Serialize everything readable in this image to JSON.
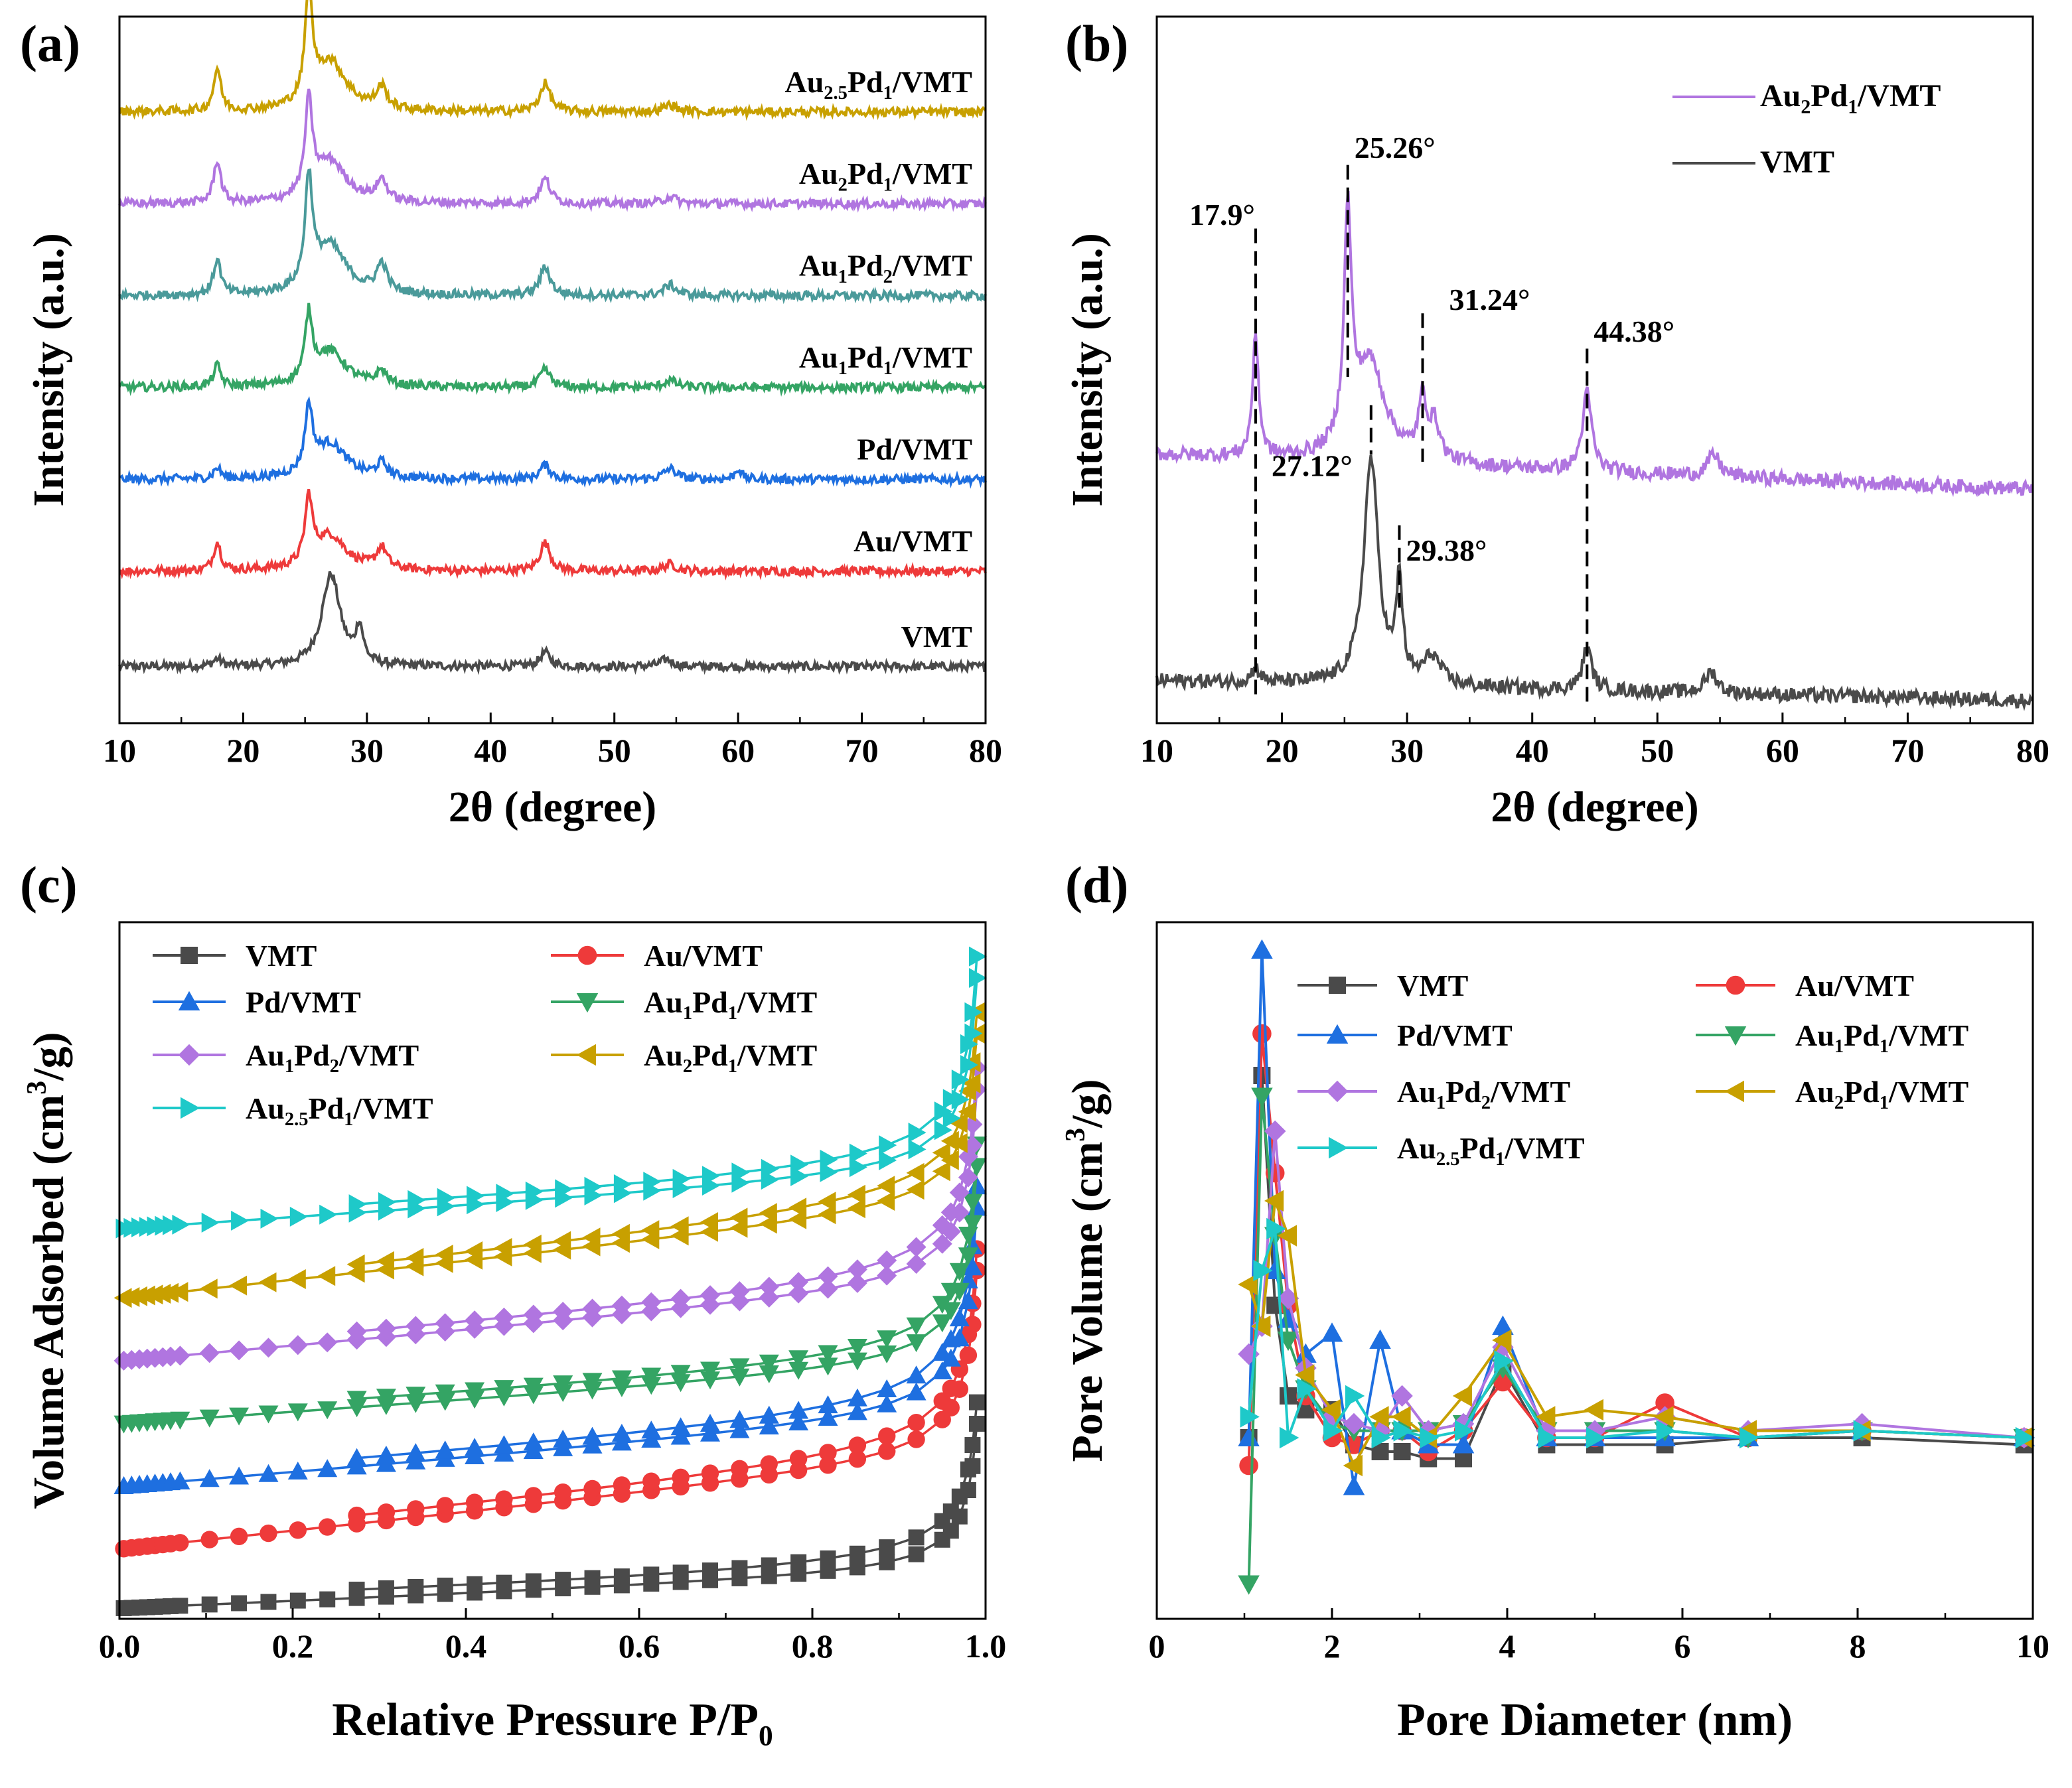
{
  "chart_data": [
    {
      "panel": "(a)",
      "type": "line",
      "xlabel": "2θ (degree)",
      "ylabel": "Intensity (a.u.)",
      "xlim": [
        10,
        80
      ],
      "xticks": [
        "10",
        "20",
        "30",
        "40",
        "50",
        "60",
        "70",
        "80"
      ],
      "series": [
        {
          "name": "VMT",
          "label_main": "VMT",
          "label_sub": "",
          "label_tail": "",
          "color": "#4a4a4a",
          "base": 0.08,
          "peaks": [
            [
              27.1,
              0.13,
              0.9
            ],
            [
              29.4,
              0.05,
              0.35
            ],
            [
              17.9,
              0.01,
              0.4
            ],
            [
              44.4,
              0.02,
              0.5
            ],
            [
              54.2,
              0.01,
              0.6
            ]
          ]
        },
        {
          "name": "Au/VMT",
          "label_main": "Au/VMT",
          "label_sub": "",
          "label_tail": "",
          "color": "#ee3a3a",
          "base": 0.215,
          "peaks": [
            [
              25.3,
              0.09,
              0.35
            ],
            [
              27.0,
              0.05,
              1.6
            ],
            [
              17.9,
              0.04,
              0.35
            ],
            [
              31.2,
              0.03,
              0.5
            ],
            [
              44.4,
              0.04,
              0.5
            ],
            [
              54.5,
              0.01,
              0.6
            ]
          ]
        },
        {
          "name": "Pd/VMT",
          "label_main": "Pd/VMT",
          "label_sub": "",
          "label_tail": "",
          "color": "#1e6fe0",
          "base": 0.345,
          "peaks": [
            [
              25.3,
              0.09,
              0.35
            ],
            [
              27.0,
              0.05,
              1.6
            ],
            [
              17.9,
              0.015,
              0.35
            ],
            [
              31.2,
              0.02,
              0.5
            ],
            [
              44.4,
              0.02,
              0.5
            ],
            [
              54.5,
              0.015,
              0.6
            ],
            [
              60.0,
              0.015,
              0.3
            ]
          ]
        },
        {
          "name": "Au1Pd1/VMT",
          "label_main": "Au",
          "label_sub": "1",
          "label_mid": "Pd",
          "label_sub2": "1",
          "label_tail": "/VMT",
          "color": "#34a464",
          "base": 0.475,
          "peaks": [
            [
              25.3,
              0.09,
              0.35
            ],
            [
              27.0,
              0.05,
              1.6
            ],
            [
              17.9,
              0.03,
              0.35
            ],
            [
              31.2,
              0.02,
              0.5
            ],
            [
              44.4,
              0.025,
              0.5
            ],
            [
              54.5,
              0.01,
              0.6
            ]
          ]
        },
        {
          "name": "Au1Pd2/VMT",
          "label_main": "Au",
          "label_sub": "1",
          "label_mid": "Pd",
          "label_sub2": "2",
          "label_tail": "/VMT",
          "color": "#4a9a9a",
          "base": 0.605,
          "peaks": [
            [
              25.3,
              0.15,
              0.35
            ],
            [
              27.0,
              0.07,
              1.6
            ],
            [
              17.9,
              0.05,
              0.35
            ],
            [
              31.2,
              0.04,
              0.5
            ],
            [
              44.4,
              0.04,
              0.5
            ],
            [
              54.5,
              0.015,
              0.6
            ]
          ]
        },
        {
          "name": "Au2Pd1/VMT",
          "label_main": "Au",
          "label_sub": "2",
          "label_mid": "Pd",
          "label_sub2": "1",
          "label_tail": "/VMT",
          "color": "#b075e0",
          "base": 0.735,
          "peaks": [
            [
              25.3,
              0.13,
              0.35
            ],
            [
              27.0,
              0.06,
              1.6
            ],
            [
              17.9,
              0.06,
              0.35
            ],
            [
              31.2,
              0.03,
              0.5
            ],
            [
              44.4,
              0.035,
              0.5
            ],
            [
              54.5,
              0.01,
              0.6
            ]
          ]
        },
        {
          "name": "Au2.5Pd1/VMT",
          "label_main": "Au",
          "label_sub": "2.5",
          "label_mid": "Pd",
          "label_sub2": "1",
          "label_tail": "/VMT",
          "color": "#c8a000",
          "base": 0.865,
          "peaks": [
            [
              25.3,
              0.15,
              0.35
            ],
            [
              27.0,
              0.07,
              1.6
            ],
            [
              17.9,
              0.06,
              0.35
            ],
            [
              31.2,
              0.03,
              0.5
            ],
            [
              44.4,
              0.04,
              0.5
            ],
            [
              54.5,
              0.01,
              0.6
            ]
          ]
        }
      ]
    },
    {
      "panel": "(b)",
      "type": "line",
      "xlabel": "2θ (degree)",
      "ylabel": "Intensity (a.u.)",
      "xlim": [
        10,
        80
      ],
      "xticks": [
        "10",
        "20",
        "30",
        "40",
        "50",
        "60",
        "70",
        "80"
      ],
      "legend": [
        {
          "main": "Au",
          "sub": "2",
          "mid": "Pd",
          "sub2": "1",
          "tail": "/VMT",
          "color": "#b075e0"
        },
        {
          "main": "VMT",
          "sub": "",
          "mid": "",
          "sub2": "",
          "tail": "",
          "color": "#4a4a4a"
        }
      ],
      "series": [
        {
          "name": "Au2Pd1/VMT",
          "color": "#b075e0",
          "base": 0.38,
          "slope": -0.0007,
          "peaks": [
            [
              25.26,
              0.32,
              0.35
            ],
            [
              27.0,
              0.14,
              1.5
            ],
            [
              17.9,
              0.17,
              0.3
            ],
            [
              31.24,
              0.08,
              0.4
            ],
            [
              32.2,
              0.05,
              0.5
            ],
            [
              44.38,
              0.11,
              0.45
            ],
            [
              54.5,
              0.03,
              0.6
            ]
          ]
        },
        {
          "name": "VMT",
          "color": "#4a4a4a",
          "base": 0.06,
          "slope": -0.0004,
          "peaks": [
            [
              27.12,
              0.32,
              0.7
            ],
            [
              29.38,
              0.14,
              0.3
            ],
            [
              32.0,
              0.04,
              0.8
            ],
            [
              17.9,
              0.02,
              0.4
            ],
            [
              44.38,
              0.06,
              0.45
            ],
            [
              54.3,
              0.03,
              0.6
            ]
          ]
        }
      ],
      "annotations": [
        {
          "text": "17.9°",
          "x": 17.9
        },
        {
          "text": "25.26°",
          "x": 25.26
        },
        {
          "text": "31.24°",
          "x": 31.24
        },
        {
          "text": "44.38°",
          "x": 44.38
        },
        {
          "text": "27.12°",
          "x": 27.12
        },
        {
          "text": "29.38°",
          "x": 29.38
        }
      ]
    },
    {
      "panel": "(c)",
      "type": "line",
      "xlabel_main": "Relative Pressure P/P",
      "xlabel_sub": "0",
      "ylabel_main": "Volume Adsorbed (cm",
      "ylabel_sup": "3",
      "ylabel_tail": "/g)",
      "xlim": [
        0,
        1
      ],
      "xticks": [
        "0.0",
        "0.2",
        "0.4",
        "0.6",
        "0.8",
        "1.0"
      ],
      "series": [
        {
          "name": "VMT",
          "color": "#4a4a4a",
          "marker": "square",
          "start": 0.015,
          "end": 0.28,
          "slope": 0.05
        },
        {
          "name": "Au/VMT",
          "color": "#ee3a3a",
          "marker": "circle",
          "start": 0.1,
          "end": 0.5,
          "slope": 0.1
        },
        {
          "name": "Pd/VMT",
          "color": "#1e6fe0",
          "marker": "triangle-up",
          "start": 0.19,
          "end": 0.59,
          "slope": 0.07
        },
        {
          "name": "Au1Pd1/VMT",
          "color": "#34a464",
          "marker": "triangle-down",
          "start": 0.28,
          "end": 0.65,
          "slope": 0.06
        },
        {
          "name": "Au1Pd2/VMT",
          "color": "#b075e0",
          "marker": "diamond",
          "start": 0.37,
          "end": 0.76,
          "slope": 0.08
        },
        {
          "name": "Au2Pd1/VMT",
          "color": "#c8a000",
          "marker": "triangle-left",
          "start": 0.46,
          "end": 0.84,
          "slope": 0.11
        },
        {
          "name": "Au2.5Pd1/VMT",
          "color": "#1ec9c9",
          "marker": "triangle-right",
          "start": 0.56,
          "end": 0.92,
          "slope": 0.06
        }
      ],
      "legend": [
        {
          "main": "VMT",
          "sub": "",
          "mid": "",
          "sub2": "",
          "tail": ""
        },
        {
          "main": "Au/VMT",
          "sub": "",
          "mid": "",
          "sub2": "",
          "tail": ""
        },
        {
          "main": "Pd/VMT",
          "sub": "",
          "mid": "",
          "sub2": "",
          "tail": ""
        },
        {
          "main": "Au",
          "sub": "1",
          "mid": "Pd",
          "sub2": "1",
          "tail": "/VMT"
        },
        {
          "main": "Au",
          "sub": "1",
          "mid": "Pd",
          "sub2": "2",
          "tail": "/VMT"
        },
        {
          "main": "Au",
          "sub": "2",
          "mid": "Pd",
          "sub2": "1",
          "tail": "/VMT"
        },
        {
          "main": "Au",
          "sub": "2.5",
          "mid": "Pd",
          "sub2": "1",
          "tail": "/VMT"
        }
      ]
    },
    {
      "panel": "(d)",
      "type": "line",
      "xlabel": "Pore Diameter (nm)",
      "ylabel_main": "Pore Volume (cm",
      "ylabel_sup": "3",
      "ylabel_tail": "/g)",
      "xlim": [
        0,
        10
      ],
      "xticks": [
        "0",
        "2",
        "4",
        "6",
        "8",
        "10"
      ],
      "x": [
        1.05,
        1.2,
        1.35,
        1.5,
        1.7,
        2.0,
        2.25,
        2.55,
        2.8,
        3.1,
        3.5,
        3.95,
        4.45,
        5.0,
        5.8,
        6.75,
        8.05,
        9.9
      ],
      "series": [
        {
          "name": "VMT",
          "color": "#4a4a4a",
          "marker": "square",
          "values": [
            0.26,
            0.78,
            0.45,
            0.32,
            0.3,
            0.3,
            0.25,
            0.24,
            0.24,
            0.23,
            0.23,
            0.36,
            0.25,
            0.25,
            0.25,
            0.26,
            0.26,
            0.25
          ]
        },
        {
          "name": "Au/VMT",
          "color": "#ee3a3a",
          "marker": "circle",
          "values": [
            0.22,
            0.84,
            0.64,
            0.45,
            0.32,
            0.26,
            0.25,
            0.27,
            0.27,
            0.24,
            0.27,
            0.34,
            0.26,
            0.26,
            0.31,
            0.26,
            0.27,
            0.26
          ]
        },
        {
          "name": "Pd/VMT",
          "color": "#1e6fe0",
          "marker": "triangle-up",
          "values": [
            0.26,
            0.96,
            0.5,
            0.43,
            0.38,
            0.41,
            0.19,
            0.4,
            0.27,
            0.25,
            0.25,
            0.42,
            0.26,
            0.26,
            0.26,
            0.26,
            0.27,
            0.26
          ]
        },
        {
          "name": "Au1Pd1/VMT",
          "color": "#34a464",
          "marker": "triangle-down",
          "values": [
            0.05,
            0.75,
            0.55,
            0.4,
            0.33,
            0.28,
            0.27,
            0.27,
            0.27,
            0.27,
            0.28,
            0.36,
            0.27,
            0.27,
            0.27,
            0.26,
            0.27,
            0.26
          ]
        },
        {
          "name": "Au1Pd2/VMT",
          "color": "#b075e0",
          "marker": "diamond",
          "values": [
            0.38,
            0.42,
            0.7,
            0.46,
            0.36,
            0.29,
            0.28,
            0.27,
            0.32,
            0.27,
            0.28,
            0.39,
            0.27,
            0.27,
            0.29,
            0.27,
            0.28,
            0.26
          ]
        },
        {
          "name": "Au2Pd1/VMT",
          "color": "#c8a000",
          "marker": "triangle-left",
          "values": [
            0.48,
            0.42,
            0.6,
            0.55,
            0.35,
            0.3,
            0.22,
            0.29,
            0.29,
            0.26,
            0.32,
            0.4,
            0.29,
            0.3,
            0.29,
            0.27,
            0.27,
            0.26
          ]
        },
        {
          "name": "Au2.5Pd1/VMT",
          "color": "#1ec9c9",
          "marker": "triangle-right",
          "values": [
            0.29,
            0.5,
            0.56,
            0.26,
            0.33,
            0.27,
            0.32,
            0.26,
            0.27,
            0.26,
            0.27,
            0.37,
            0.26,
            0.26,
            0.27,
            0.26,
            0.27,
            0.26
          ]
        }
      ],
      "legend": [
        {
          "main": "VMT",
          "sub": "",
          "mid": "",
          "sub2": "",
          "tail": ""
        },
        {
          "main": "Au/VMT",
          "sub": "",
          "mid": "",
          "sub2": "",
          "tail": ""
        },
        {
          "main": "Pd/VMT",
          "sub": "",
          "mid": "",
          "sub2": "",
          "tail": ""
        },
        {
          "main": "Au",
          "sub": "1",
          "mid": "Pd",
          "sub2": "1",
          "tail": "/VMT"
        },
        {
          "main": "Au",
          "sub": "1",
          "mid": "Pd",
          "sub2": "2",
          "tail": "/VMT"
        },
        {
          "main": "Au",
          "sub": "2",
          "mid": "Pd",
          "sub2": "1",
          "tail": "/VMT"
        },
        {
          "main": "Au",
          "sub": "2.5",
          "mid": "Pd",
          "sub2": "1",
          "tail": "/VMT"
        }
      ]
    }
  ]
}
